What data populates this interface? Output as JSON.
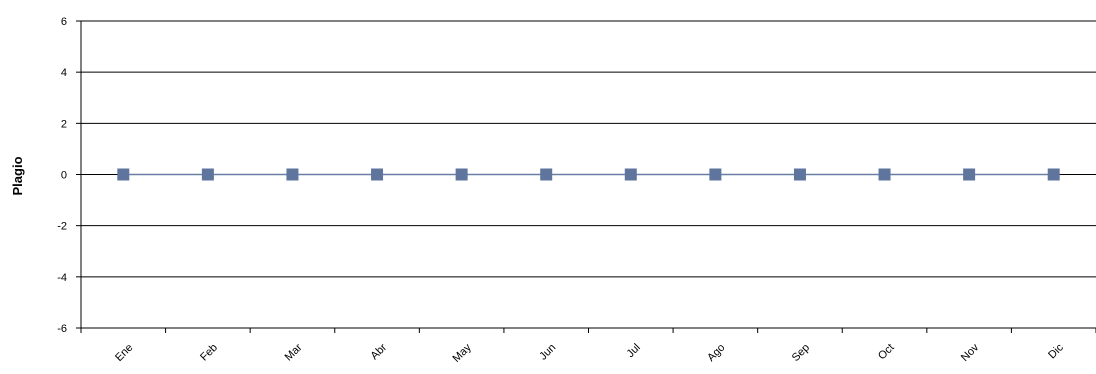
{
  "chart_data": {
    "type": "line",
    "title": "",
    "xlabel": "",
    "ylabel": "Plagio",
    "categories": [
      "Ene",
      "Feb",
      "Mar",
      "Abr",
      "May",
      "Jun",
      "Jul",
      "Ago",
      "Sep",
      "Oct",
      "Nov",
      "Dic"
    ],
    "series": [
      {
        "values": [
          0,
          0,
          0,
          0,
          0,
          0,
          0,
          0,
          0,
          0,
          0,
          0
        ]
      }
    ],
    "ylim": [
      -6,
      6
    ],
    "yticks": [
      6,
      4,
      2,
      0,
      -2,
      -4,
      -6
    ],
    "grid": "horizontal",
    "legend": "none",
    "colors": {
      "series": "#6a7fa6",
      "marker": "#5f759d",
      "axis": "#000000",
      "grid": "#000000"
    }
  }
}
